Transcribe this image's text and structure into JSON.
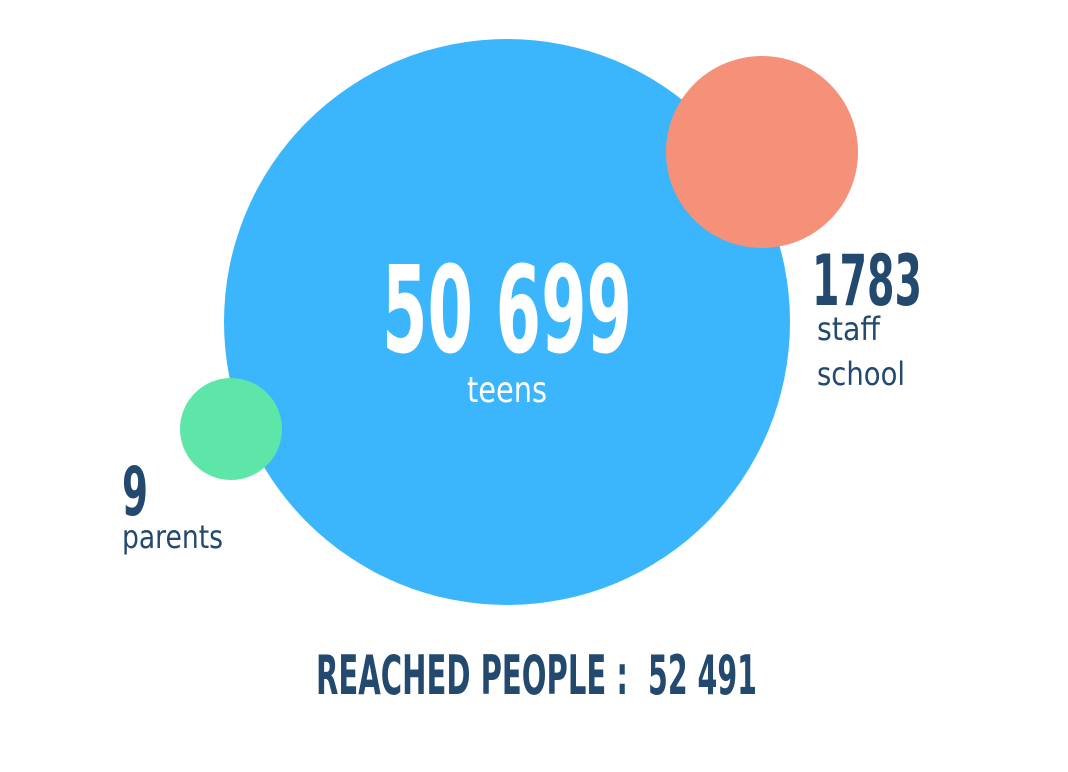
{
  "groups": [
    {
      "value": "50 699",
      "label": [
        "teens"
      ]
    },
    {
      "value": "1783",
      "label": [
        "staff",
        "school"
      ]
    },
    {
      "value": "9",
      "label": [
        "parents"
      ]
    }
  ],
  "total": {
    "label": "REACHED PEOPLE :",
    "value": "52 491"
  }
}
